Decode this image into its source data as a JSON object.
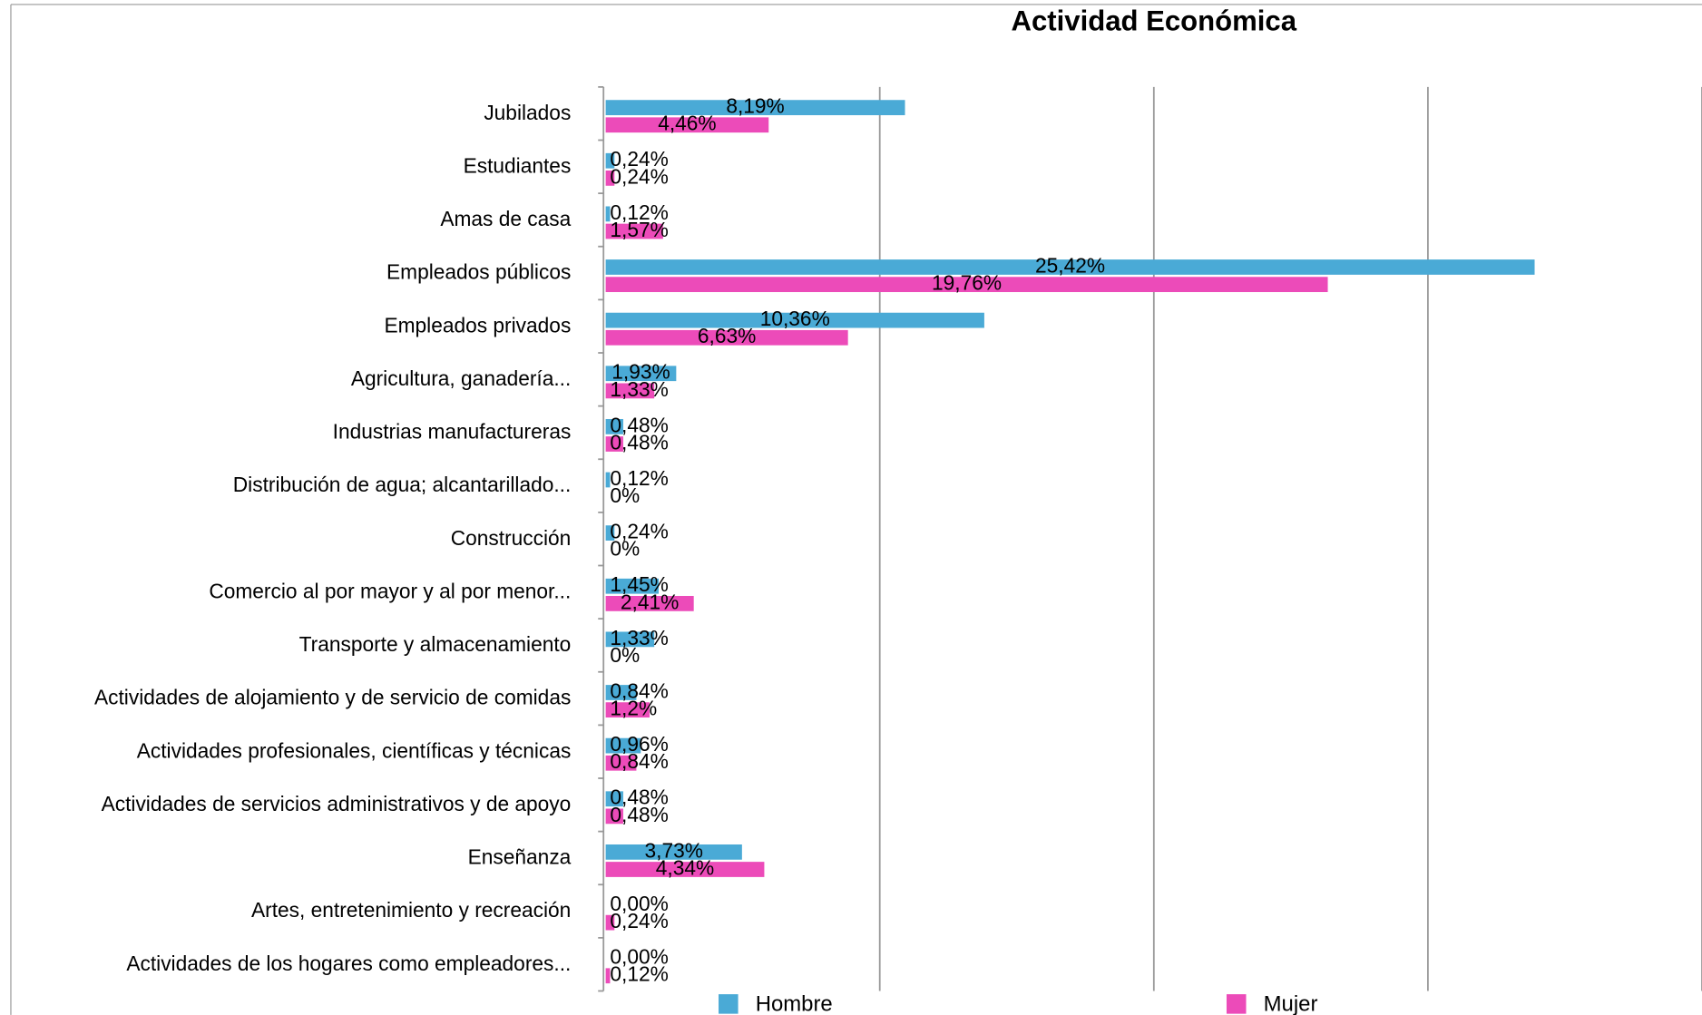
{
  "chart_data": {
    "type": "bar",
    "orientation": "horizontal",
    "title": "Actividad Económica",
    "categories": [
      "Jubilados",
      "Estudiantes",
      "Amas de casa",
      "Empleados públicos",
      "Empleados privados",
      "Agricultura, ganadería...",
      "Industrias manufactureras",
      "Distribución de agua; alcantarillado...",
      "Construcción",
      "Comercio al por mayor y al por menor...",
      "Transporte y almacenamiento",
      "Actividades de alojamiento y de servicio de comidas",
      "Actividades profesionales, científicas y técnicas",
      "Actividades de servicios administrativos y de apoyo",
      "Enseñanza",
      "Artes, entretenimiento y recreación",
      "Actividades de los hogares como empleadores..."
    ],
    "series": [
      {
        "name": "Hombre",
        "color": "#4aaad6",
        "values": [
          8.19,
          0.24,
          0.12,
          25.42,
          10.36,
          1.93,
          0.48,
          0.12,
          0.24,
          1.45,
          1.33,
          0.84,
          0.96,
          0.48,
          3.73,
          0,
          0
        ],
        "value_labels": [
          "8,19%",
          "0,24%",
          "0,12%",
          "25,42%",
          "10,36%",
          "1,93%",
          "0,48%",
          "0,12%",
          "0,24%",
          "1,45%",
          "1,33%",
          "0,84%",
          "0,96%",
          "0,48%",
          "3,73%",
          "0,00%",
          "0,00%"
        ]
      },
      {
        "name": "Mujer",
        "color": "#ec4bb9",
        "values": [
          4.46,
          0.24,
          1.57,
          19.76,
          6.63,
          1.33,
          0.48,
          0,
          0,
          2.41,
          0,
          1.2,
          0.84,
          0.48,
          4.34,
          0.24,
          0.12
        ],
        "value_labels": [
          "4,46%",
          "0,24%",
          "1,57%",
          "19,76%",
          "6,63%",
          "1,33%",
          "0,48%",
          "0%",
          "0%",
          "2,41%",
          "0%",
          "1,2%",
          "0,84%",
          "0,48%",
          "4,34%",
          "0,24%",
          "0,12%"
        ]
      }
    ],
    "xlim": [
      0,
      30
    ],
    "xticks": [
      0,
      7.5,
      15,
      22.5,
      30
    ],
    "grid": true,
    "legend": "bottom"
  }
}
